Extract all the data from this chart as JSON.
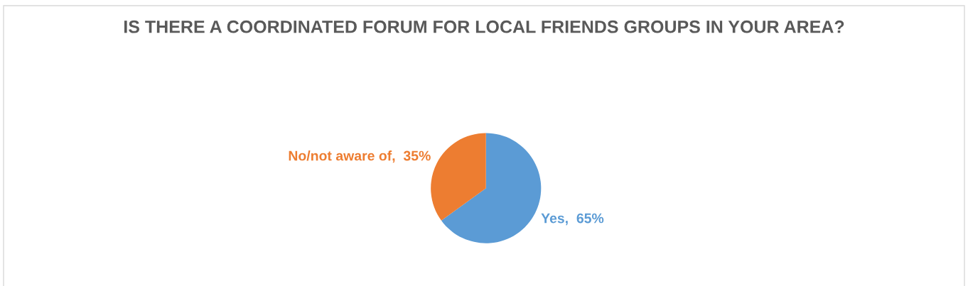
{
  "chart_data": {
    "type": "pie",
    "title": "IS THERE A COORDINATED FORUM FOR LOCAL FRIENDS GROUPS IN YOUR AREA?",
    "categories": [
      "Yes",
      "No/not aware of"
    ],
    "values": [
      65,
      35
    ],
    "colors": [
      "#5b9bd5",
      "#ed7d31"
    ],
    "value_labels": [
      "65%",
      "35%"
    ],
    "data_labels": true
  }
}
